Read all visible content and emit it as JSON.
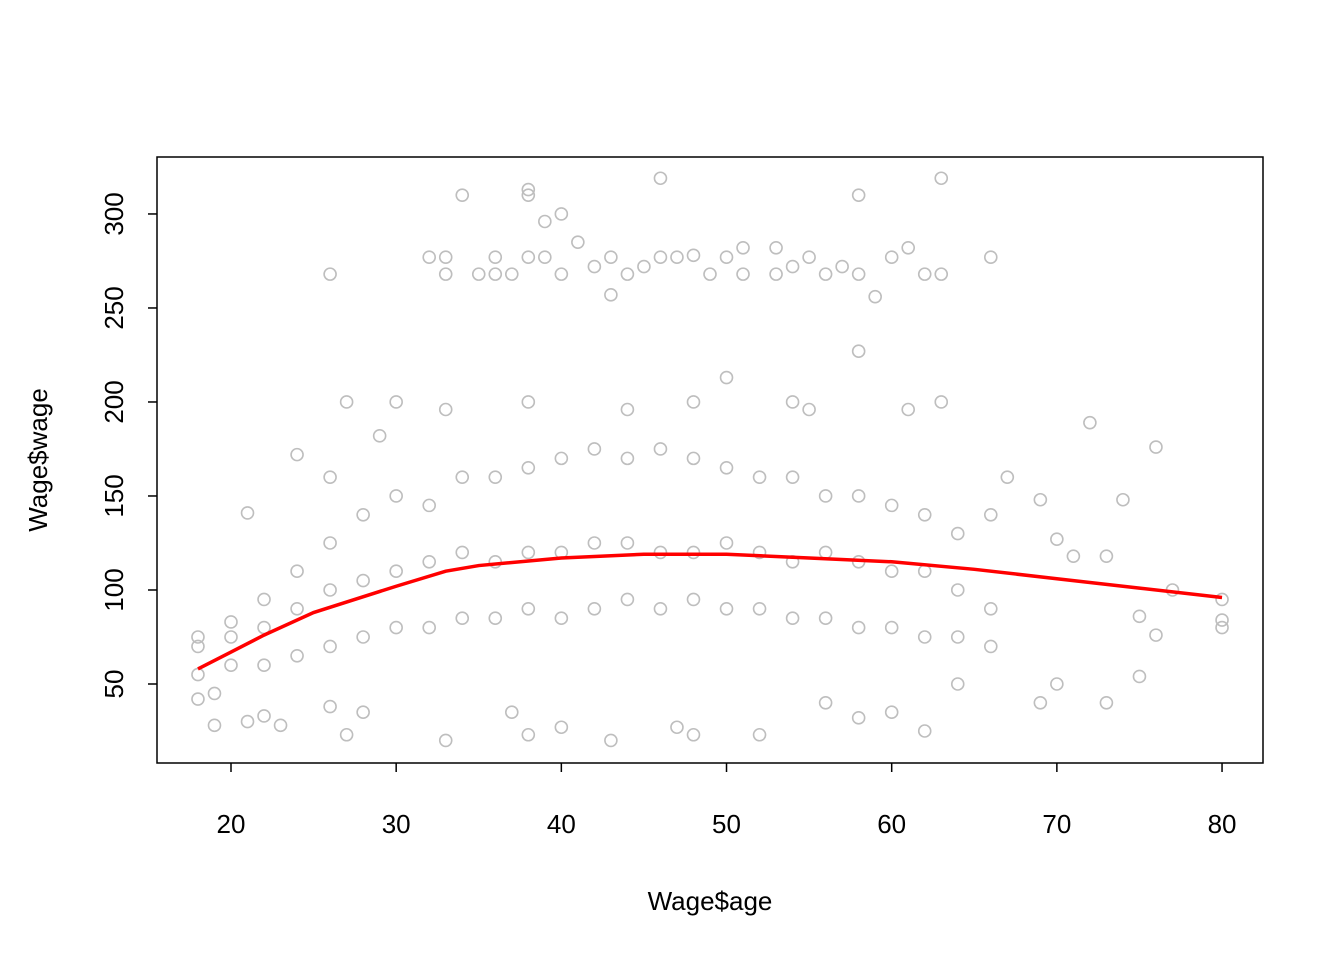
{
  "chart_data": {
    "type": "scatter",
    "xlabel": "Wage$age",
    "ylabel": "Wage$wage",
    "xlim": [
      15.52,
      82.48
    ],
    "ylim": [
      7.98,
      330.3
    ],
    "xticks": [
      20,
      30,
      40,
      50,
      60,
      70,
      80
    ],
    "yticks": [
      50,
      100,
      150,
      200,
      250,
      300
    ],
    "points": {
      "color": "#bebebe",
      "x": [
        26,
        32,
        33,
        33,
        34,
        35,
        36,
        36,
        37,
        38,
        38,
        38,
        39,
        39,
        40,
        40,
        41,
        42,
        43,
        43,
        44,
        45,
        46,
        46,
        47,
        48,
        49,
        50,
        51,
        51,
        53,
        53,
        54,
        55,
        56,
        57,
        58,
        58,
        59,
        60,
        61,
        62,
        63,
        63,
        66,
        58,
        50,
        27,
        30,
        38,
        48,
        54,
        63,
        72,
        76,
        24,
        21,
        26,
        29,
        33,
        44,
        55,
        61,
        74,
        69,
        67,
        70,
        71,
        73,
        75,
        75,
        73,
        70,
        69,
        76,
        77,
        80,
        80,
        80,
        18,
        19,
        19,
        21,
        22,
        23,
        26,
        27,
        28,
        33,
        37,
        38,
        40,
        43,
        47,
        48,
        52,
        56,
        58,
        60,
        62,
        64,
        18,
        18,
        18,
        20,
        20,
        20,
        22,
        22,
        22,
        24,
        24,
        24,
        26,
        26,
        26,
        28,
        28,
        28,
        30,
        30,
        30,
        32,
        32,
        32,
        34,
        34,
        34,
        36,
        36,
        36,
        38,
        38,
        38,
        40,
        40,
        40,
        42,
        42,
        42,
        44,
        44,
        44,
        46,
        46,
        46,
        48,
        48,
        48,
        50,
        50,
        50,
        52,
        52,
        52,
        54,
        54,
        54,
        56,
        56,
        56,
        58,
        58,
        58,
        60,
        60,
        60,
        62,
        62,
        62,
        64,
        64,
        64,
        66,
        66,
        66
      ],
      "y": [
        268,
        277,
        277,
        268,
        310,
        268,
        277,
        268,
        268,
        313,
        310,
        277,
        296,
        277,
        300,
        268,
        285,
        272,
        277,
        257,
        268,
        272,
        319,
        277,
        277,
        278,
        268,
        277,
        282,
        268,
        282,
        268,
        272,
        277,
        268,
        272,
        310,
        268,
        256,
        277,
        282,
        268,
        319,
        268,
        277,
        227,
        213,
        200,
        200,
        200,
        200,
        200,
        200,
        189,
        176,
        172,
        141,
        160,
        182,
        196,
        196,
        196,
        196,
        148,
        148,
        160,
        127,
        118,
        118,
        86,
        54,
        40,
        50,
        40,
        76,
        100,
        95,
        84,
        80,
        42,
        28,
        45,
        30,
        33,
        28,
        38,
        23,
        35,
        20,
        35,
        23,
        27,
        20,
        27,
        23,
        23,
        40,
        32,
        35,
        25,
        50,
        55,
        70,
        75,
        60,
        75,
        83,
        60,
        80,
        95,
        65,
        90,
        110,
        70,
        100,
        125,
        75,
        105,
        140,
        80,
        110,
        150,
        80,
        115,
        145,
        85,
        120,
        160,
        85,
        115,
        160,
        90,
        120,
        165,
        85,
        120,
        170,
        90,
        125,
        175,
        95,
        125,
        170,
        90,
        120,
        175,
        95,
        120,
        170,
        90,
        125,
        165,
        90,
        120,
        160,
        85,
        115,
        160,
        85,
        120,
        150,
        80,
        115,
        150,
        80,
        110,
        145,
        75,
        110,
        140,
        75,
        100,
        130,
        70,
        90,
        140
      ]
    },
    "fit": {
      "color": "#ff0000",
      "x": [
        18,
        20,
        22,
        25,
        30,
        33,
        35,
        40,
        45,
        50,
        55,
        60,
        65,
        70,
        75,
        80
      ],
      "y": [
        58,
        67,
        76,
        88,
        102,
        110,
        113,
        117,
        119,
        119,
        117,
        115,
        111,
        106,
        101,
        96
      ]
    }
  }
}
